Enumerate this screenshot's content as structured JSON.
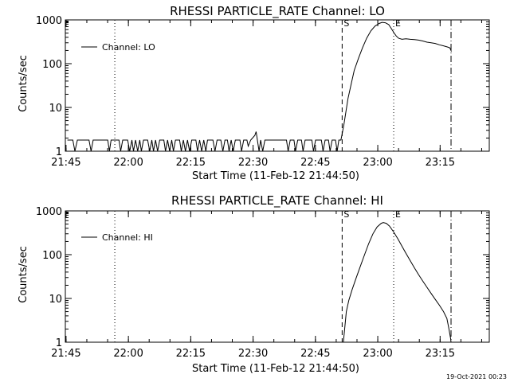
{
  "footer_timestamp": "19-Oct-2021 00:23",
  "chart_data": [
    {
      "type": "line",
      "title": "RHESSI PARTICLE_RATE Channel: LO",
      "xlabel": "Start Time (11-Feb-12 21:44:50)",
      "ylabel": "Counts/sec",
      "x_unit": "minutes after 21:44:50",
      "xlim": [
        0,
        102
      ],
      "ylim": [
        1,
        1000
      ],
      "yscale": "log",
      "x_ticks": [
        {
          "t": 0.17,
          "label": "21:45"
        },
        {
          "t": 15.17,
          "label": "22:00"
        },
        {
          "t": 30.17,
          "label": "22:15"
        },
        {
          "t": 45.17,
          "label": "22:30"
        },
        {
          "t": 60.17,
          "label": "22:45"
        },
        {
          "t": 75.17,
          "label": "23:00"
        },
        {
          "t": 90.17,
          "label": "23:15"
        }
      ],
      "y_ticks": [
        {
          "v": 1,
          "label": "1"
        },
        {
          "v": 10,
          "label": "10"
        },
        {
          "v": 100,
          "label": "100"
        },
        {
          "v": 1000,
          "label": "1000"
        }
      ],
      "legend": {
        "label": "Channel: LO",
        "placement": "top-left"
      },
      "markers": [
        {
          "t": 11.9,
          "style": "dotted",
          "label": ""
        },
        {
          "t": 66.6,
          "style": "dashed",
          "label": "S"
        },
        {
          "t": 79.0,
          "style": "dotted",
          "label": "E"
        },
        {
          "t": 92.8,
          "style": "dashdot",
          "label": ""
        }
      ],
      "series": [
        {
          "name": "Channel: LO",
          "points": [
            [
              0.5,
              1.8
            ],
            [
              1.8,
              1.8
            ],
            [
              2.3,
              1
            ],
            [
              2.9,
              1.8
            ],
            [
              5.7,
              1.8
            ],
            [
              6.2,
              1
            ],
            [
              6.7,
              1.8
            ],
            [
              10.2,
              1.8
            ],
            [
              10.6,
              1
            ],
            [
              11.0,
              1.8
            ],
            [
              12.9,
              1.8
            ],
            [
              13.3,
              1
            ],
            [
              13.8,
              1.8
            ],
            [
              15.0,
              1.8
            ],
            [
              15.5,
              1
            ],
            [
              16.0,
              1.8
            ],
            [
              16.4,
              1
            ],
            [
              16.9,
              1.8
            ],
            [
              17.4,
              1
            ],
            [
              17.9,
              1.8
            ],
            [
              18.3,
              1
            ],
            [
              18.8,
              1.8
            ],
            [
              19.8,
              1.8
            ],
            [
              20.3,
              1
            ],
            [
              20.8,
              1.8
            ],
            [
              21.2,
              1
            ],
            [
              21.7,
              1.8
            ],
            [
              22.2,
              1
            ],
            [
              22.7,
              1.8
            ],
            [
              23.7,
              1.8
            ],
            [
              24.1,
              1
            ],
            [
              24.6,
              1.8
            ],
            [
              25.1,
              1
            ],
            [
              25.6,
              1.8
            ],
            [
              26.0,
              1
            ],
            [
              26.5,
              1.8
            ],
            [
              27.5,
              1.8
            ],
            [
              27.9,
              1
            ],
            [
              28.4,
              1.8
            ],
            [
              28.9,
              1
            ],
            [
              29.4,
              1.8
            ],
            [
              29.9,
              1
            ],
            [
              30.4,
              1.8
            ],
            [
              31.4,
              1.8
            ],
            [
              31.8,
              1
            ],
            [
              32.3,
              1.8
            ],
            [
              32.8,
              1
            ],
            [
              33.3,
              1.8
            ],
            [
              33.8,
              1
            ],
            [
              34.2,
              1.8
            ],
            [
              35.5,
              1.8
            ],
            [
              36.0,
              1
            ],
            [
              36.5,
              1.8
            ],
            [
              37.4,
              1.8
            ],
            [
              37.9,
              1
            ],
            [
              38.4,
              1.8
            ],
            [
              39.0,
              1.8
            ],
            [
              39.4,
              1
            ],
            [
              39.9,
              1.8
            ],
            [
              40.4,
              1
            ],
            [
              40.9,
              1.8
            ],
            [
              42.0,
              1.8
            ],
            [
              42.4,
              1
            ],
            [
              42.9,
              1.8
            ],
            [
              43.7,
              1.8
            ],
            [
              44.0,
              1.3
            ],
            [
              44.6,
              1.8
            ],
            [
              45.6,
              2.3
            ],
            [
              45.9,
              2.8
            ],
            [
              46.2,
              1.8
            ],
            [
              46.6,
              1
            ],
            [
              47.0,
              1.8
            ],
            [
              47.5,
              1
            ],
            [
              48.0,
              1.8
            ],
            [
              53.2,
              1.8
            ],
            [
              53.6,
              1
            ],
            [
              54.1,
              1.8
            ],
            [
              55.0,
              1.8
            ],
            [
              55.4,
              1
            ],
            [
              55.9,
              1.8
            ],
            [
              56.8,
              1.8
            ],
            [
              57.2,
              1
            ],
            [
              57.7,
              1.8
            ],
            [
              59.3,
              1.8
            ],
            [
              59.7,
              1
            ],
            [
              60.2,
              1.8
            ],
            [
              61.6,
              1.8
            ],
            [
              62.0,
              1
            ],
            [
              62.5,
              1.8
            ],
            [
              63.3,
              1.8
            ],
            [
              63.7,
              1
            ],
            [
              64.2,
              1.8
            ],
            [
              65.0,
              1.8
            ],
            [
              65.4,
              1
            ],
            [
              65.8,
              1.8
            ],
            [
              66.3,
              1.8
            ],
            [
              66.6,
              2.5
            ],
            [
              67.0,
              4
            ],
            [
              67.5,
              8
            ],
            [
              68.0,
              16
            ],
            [
              68.8,
              35
            ],
            [
              69.5,
              70
            ],
            [
              70.5,
              130
            ],
            [
              71.5,
              230
            ],
            [
              72.5,
              380
            ],
            [
              73.5,
              560
            ],
            [
              74.5,
              720
            ],
            [
              75.5,
              830
            ],
            [
              76.2,
              880
            ],
            [
              77.0,
              860
            ],
            [
              77.8,
              780
            ],
            [
              78.5,
              620
            ],
            [
              79.0,
              520
            ],
            [
              79.6,
              430
            ],
            [
              80.2,
              380
            ],
            [
              81.0,
              360
            ],
            [
              82.0,
              370
            ],
            [
              83.0,
              360
            ],
            [
              84.0,
              355
            ],
            [
              85.0,
              345
            ],
            [
              86.0,
              330
            ],
            [
              87.0,
              310
            ],
            [
              88.0,
              300
            ],
            [
              89.0,
              290
            ],
            [
              90.0,
              270
            ],
            [
              91.0,
              255
            ],
            [
              92.0,
              240
            ],
            [
              92.5,
              230
            ],
            [
              92.9,
              190
            ]
          ]
        }
      ]
    },
    {
      "type": "line",
      "title": "RHESSI PARTICLE_RATE Channel: HI",
      "xlabel": "Start Time (11-Feb-12 21:44:50)",
      "ylabel": "Counts/sec",
      "x_unit": "minutes after 21:44:50",
      "xlim": [
        0,
        102
      ],
      "ylim": [
        1,
        1000
      ],
      "yscale": "log",
      "x_ticks": [
        {
          "t": 0.17,
          "label": "21:45"
        },
        {
          "t": 15.17,
          "label": "22:00"
        },
        {
          "t": 30.17,
          "label": "22:15"
        },
        {
          "t": 45.17,
          "label": "22:30"
        },
        {
          "t": 60.17,
          "label": "22:45"
        },
        {
          "t": 75.17,
          "label": "23:00"
        },
        {
          "t": 90.17,
          "label": "23:15"
        }
      ],
      "y_ticks": [
        {
          "v": 1,
          "label": "1"
        },
        {
          "v": 10,
          "label": "10"
        },
        {
          "v": 100,
          "label": "100"
        },
        {
          "v": 1000,
          "label": "1000"
        }
      ],
      "legend": {
        "label": "Channel: HI",
        "placement": "top-left"
      },
      "markers": [
        {
          "t": 11.9,
          "style": "dotted",
          "label": ""
        },
        {
          "t": 66.6,
          "style": "dashed",
          "label": "S"
        },
        {
          "t": 79.0,
          "style": "dotted",
          "label": "E"
        },
        {
          "t": 92.8,
          "style": "dashdot",
          "label": ""
        }
      ],
      "series": [
        {
          "name": "Channel: HI",
          "points": [
            [
              66.9,
              1
            ],
            [
              67.2,
              2
            ],
            [
              67.6,
              5
            ],
            [
              68.2,
              9
            ],
            [
              69.0,
              16
            ],
            [
              70.0,
              30
            ],
            [
              71.0,
              55
            ],
            [
              72.0,
              100
            ],
            [
              73.0,
              180
            ],
            [
              74.0,
              300
            ],
            [
              75.0,
              430
            ],
            [
              76.0,
              520
            ],
            [
              76.5,
              540
            ],
            [
              77.2,
              520
            ],
            [
              78.0,
              450
            ],
            [
              79.0,
              330
            ],
            [
              80.0,
              230
            ],
            [
              81.0,
              155
            ],
            [
              82.0,
              105
            ],
            [
              83.0,
              72
            ],
            [
              84.0,
              50
            ],
            [
              85.0,
              35
            ],
            [
              86.0,
              25
            ],
            [
              87.0,
              18
            ],
            [
              88.0,
              13
            ],
            [
              89.0,
              9.5
            ],
            [
              90.0,
              7
            ],
            [
              91.0,
              5
            ],
            [
              91.8,
              3.5
            ],
            [
              92.3,
              2
            ],
            [
              92.7,
              1.2
            ],
            [
              92.8,
              1
            ]
          ]
        }
      ]
    }
  ]
}
